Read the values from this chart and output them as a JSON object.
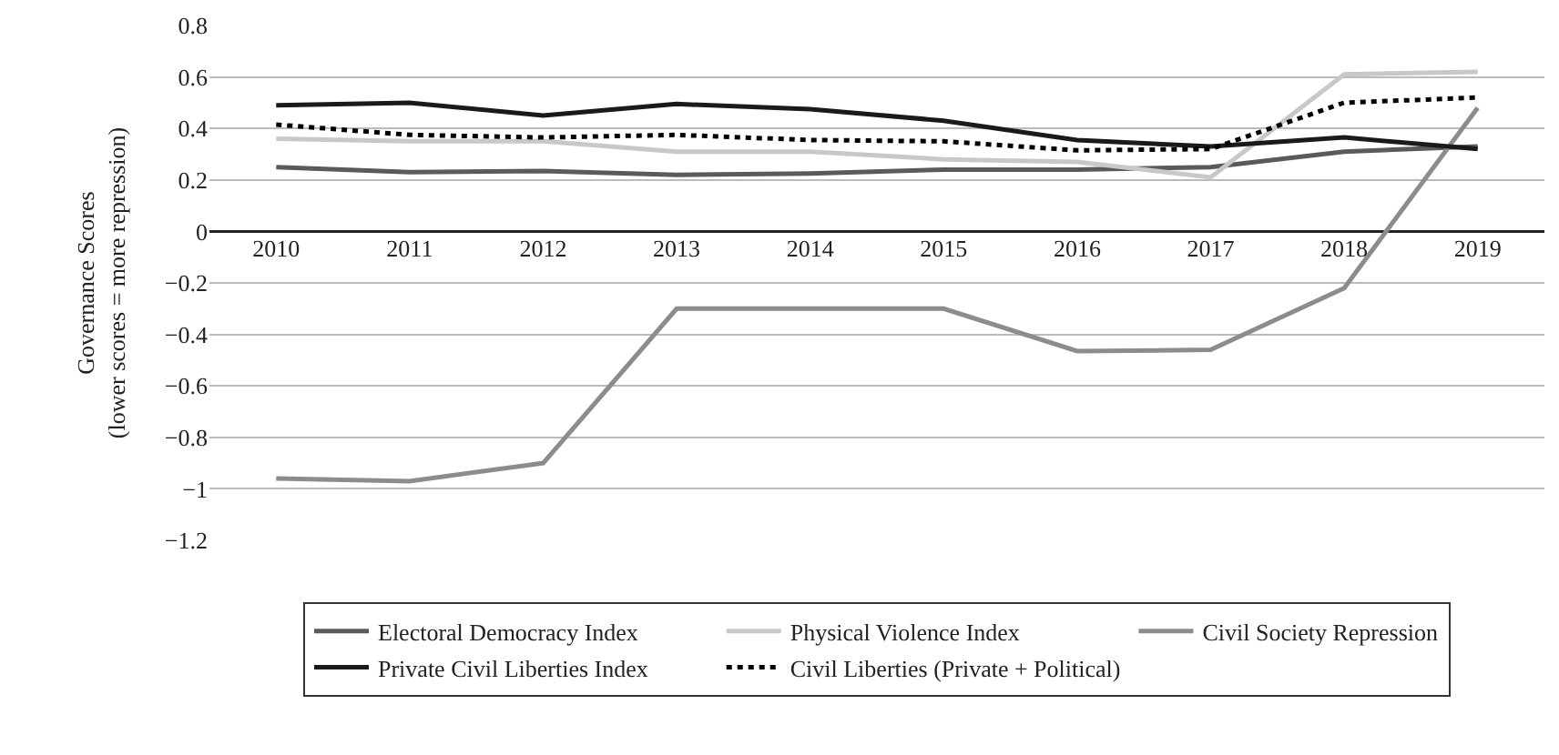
{
  "chart_data": {
    "type": "line",
    "ylabel": "Governance Scores\n(lower scores = more repression)",
    "categories": [
      "2010",
      "2011",
      "2012",
      "2013",
      "2014",
      "2015",
      "2016",
      "2017",
      "2018",
      "2019"
    ],
    "series": [
      {
        "name": "Electoral Democracy Index",
        "color": "#5a5a5a",
        "values": [
          0.25,
          0.23,
          0.235,
          0.22,
          0.225,
          0.24,
          0.24,
          0.25,
          0.31,
          0.33
        ]
      },
      {
        "name": "Physical Violence Index",
        "color": "#c8c8c8",
        "values": [
          0.36,
          0.35,
          0.35,
          0.31,
          0.31,
          0.28,
          0.27,
          0.21,
          0.61,
          0.62
        ]
      },
      {
        "name": "Civil Society Repression",
        "color": "#8c8c8c",
        "values": [
          -0.96,
          -0.97,
          -0.9,
          -0.3,
          -0.3,
          -0.3,
          -0.465,
          -0.46,
          -0.22,
          0.48
        ]
      },
      {
        "name": "Private Civil Liberties Index",
        "color": "#1a1a1a",
        "values": [
          0.49,
          0.5,
          0.45,
          0.495,
          0.475,
          0.43,
          0.355,
          0.33,
          0.365,
          0.32
        ]
      },
      {
        "name": "Civil Liberties (Private + Political)",
        "color": "#000000",
        "line_style": "dotted",
        "values": [
          0.415,
          0.375,
          0.365,
          0.375,
          0.355,
          0.35,
          0.315,
          0.32,
          0.5,
          0.52
        ]
      }
    ],
    "ylim": [
      -1.2,
      0.8
    ],
    "yticks": [
      -1.2,
      -1,
      -0.8,
      -0.6,
      -0.4,
      -0.2,
      0,
      0.2,
      0.4,
      0.6,
      0.8
    ],
    "grid": "y",
    "legend": "bottom",
    "marker": "none"
  }
}
